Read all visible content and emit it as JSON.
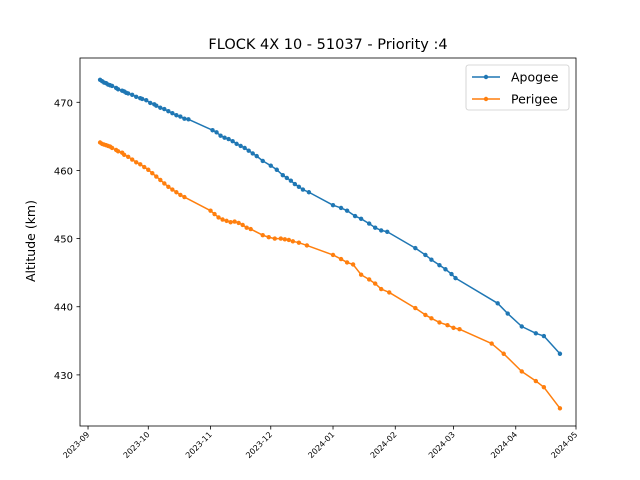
{
  "chart_data": {
    "type": "line",
    "title": "FLOCK 4X 10 - 51037 - Priority :4",
    "xlabel": "",
    "ylabel": "Altitude (km)",
    "x_ticks": [
      "2023-09",
      "2023-10",
      "2023-11",
      "2023-12",
      "2024-01",
      "2024-02",
      "2024-03",
      "2024-04",
      "2024-05"
    ],
    "y_ticks": [
      430,
      440,
      450,
      460,
      470
    ],
    "xlim": [
      "2023-08-28",
      "2024-05-01"
    ],
    "ylim": [
      422.5,
      476.5
    ],
    "grid": false,
    "legend_position": "upper right",
    "series": [
      {
        "name": "Apogee",
        "color": "#1f77b4",
        "points": [
          [
            "2023-09-07",
            473.3
          ],
          [
            "2023-09-08",
            473.1
          ],
          [
            "2023-09-09",
            472.9
          ],
          [
            "2023-09-10",
            472.8
          ],
          [
            "2023-09-11",
            472.6
          ],
          [
            "2023-09-12",
            472.5
          ],
          [
            "2023-09-13",
            472.4
          ],
          [
            "2023-09-15",
            472.1
          ],
          [
            "2023-09-16",
            471.9
          ],
          [
            "2023-09-18",
            471.7
          ],
          [
            "2023-09-19",
            471.6
          ],
          [
            "2023-09-20",
            471.4
          ],
          [
            "2023-09-21",
            471.3
          ],
          [
            "2023-09-23",
            471.1
          ],
          [
            "2023-09-25",
            470.8
          ],
          [
            "2023-09-27",
            470.6
          ],
          [
            "2023-09-28",
            470.5
          ],
          [
            "2023-09-30",
            470.3
          ],
          [
            "2023-10-02",
            469.9
          ],
          [
            "2023-10-04",
            469.7
          ],
          [
            "2023-10-05",
            469.5
          ],
          [
            "2023-10-07",
            469.2
          ],
          [
            "2023-10-09",
            469.0
          ],
          [
            "2023-10-11",
            468.7
          ],
          [
            "2023-10-13",
            468.4
          ],
          [
            "2023-10-15",
            468.1
          ],
          [
            "2023-10-17",
            467.9
          ],
          [
            "2023-10-19",
            467.6
          ],
          [
            "2023-10-21",
            467.5
          ],
          [
            "2023-11-02",
            465.9
          ],
          [
            "2023-11-04",
            465.6
          ],
          [
            "2023-11-06",
            465.1
          ],
          [
            "2023-11-08",
            464.8
          ],
          [
            "2023-11-10",
            464.6
          ],
          [
            "2023-11-12",
            464.3
          ],
          [
            "2023-11-14",
            463.9
          ],
          [
            "2023-11-16",
            463.6
          ],
          [
            "2023-11-18",
            463.3
          ],
          [
            "2023-11-20",
            462.9
          ],
          [
            "2023-11-22",
            462.5
          ],
          [
            "2023-11-24",
            462.1
          ],
          [
            "2023-11-27",
            461.4
          ],
          [
            "2023-12-01",
            460.7
          ],
          [
            "2023-12-04",
            460.1
          ],
          [
            "2023-12-07",
            459.3
          ],
          [
            "2023-12-09",
            458.9
          ],
          [
            "2023-12-11",
            458.5
          ],
          [
            "2023-12-13",
            458.0
          ],
          [
            "2023-12-15",
            457.6
          ],
          [
            "2023-12-17",
            457.2
          ],
          [
            "2023-12-20",
            456.8
          ],
          [
            "2024-01-01",
            454.9
          ],
          [
            "2024-01-05",
            454.5
          ],
          [
            "2024-01-08",
            454.1
          ],
          [
            "2024-01-12",
            453.3
          ],
          [
            "2024-01-15",
            452.9
          ],
          [
            "2024-01-19",
            452.2
          ],
          [
            "2024-01-22",
            451.6
          ],
          [
            "2024-01-25",
            451.2
          ],
          [
            "2024-01-28",
            451.0
          ],
          [
            "2024-02-11",
            448.6
          ],
          [
            "2024-02-16",
            447.6
          ],
          [
            "2024-02-19",
            446.9
          ],
          [
            "2024-02-23",
            446.1
          ],
          [
            "2024-02-26",
            445.5
          ],
          [
            "2024-02-29",
            444.8
          ],
          [
            "2024-03-02",
            444.2
          ],
          [
            "2024-03-23",
            440.5
          ],
          [
            "2024-03-28",
            439.0
          ],
          [
            "2024-04-04",
            437.1
          ],
          [
            "2024-04-11",
            436.1
          ],
          [
            "2024-04-15",
            435.7
          ],
          [
            "2024-04-23",
            433.1
          ]
        ]
      },
      {
        "name": "Perigee",
        "color": "#ff7f0e",
        "points": [
          [
            "2023-09-07",
            464.1
          ],
          [
            "2023-09-08",
            463.9
          ],
          [
            "2023-09-09",
            463.8
          ],
          [
            "2023-09-10",
            463.7
          ],
          [
            "2023-09-11",
            463.6
          ],
          [
            "2023-09-12",
            463.5
          ],
          [
            "2023-09-13",
            463.3
          ],
          [
            "2023-09-15",
            463.0
          ],
          [
            "2023-09-16",
            462.8
          ],
          [
            "2023-09-18",
            462.6
          ],
          [
            "2023-09-19",
            462.3
          ],
          [
            "2023-09-21",
            462.0
          ],
          [
            "2023-09-23",
            461.6
          ],
          [
            "2023-09-25",
            461.2
          ],
          [
            "2023-09-27",
            460.9
          ],
          [
            "2023-09-29",
            460.5
          ],
          [
            "2023-10-01",
            460.1
          ],
          [
            "2023-10-03",
            459.6
          ],
          [
            "2023-10-05",
            459.1
          ],
          [
            "2023-10-07",
            458.6
          ],
          [
            "2023-10-09",
            458.1
          ],
          [
            "2023-10-11",
            457.6
          ],
          [
            "2023-10-13",
            457.2
          ],
          [
            "2023-10-15",
            456.8
          ],
          [
            "2023-10-17",
            456.4
          ],
          [
            "2023-10-19",
            456.1
          ],
          [
            "2023-11-01",
            454.1
          ],
          [
            "2023-11-03",
            453.6
          ],
          [
            "2023-11-05",
            453.1
          ],
          [
            "2023-11-07",
            452.8
          ],
          [
            "2023-11-09",
            452.6
          ],
          [
            "2023-11-11",
            452.4
          ],
          [
            "2023-11-13",
            452.5
          ],
          [
            "2023-11-15",
            452.3
          ],
          [
            "2023-11-17",
            452.0
          ],
          [
            "2023-11-19",
            451.6
          ],
          [
            "2023-11-21",
            451.4
          ],
          [
            "2023-11-27",
            450.5
          ],
          [
            "2023-11-30",
            450.2
          ],
          [
            "2023-12-03",
            450.0
          ],
          [
            "2023-12-06",
            450.0
          ],
          [
            "2023-12-08",
            449.9
          ],
          [
            "2023-12-10",
            449.8
          ],
          [
            "2023-12-12",
            449.6
          ],
          [
            "2023-12-15",
            449.4
          ],
          [
            "2023-12-19",
            449.0
          ],
          [
            "2024-01-01",
            447.6
          ],
          [
            "2024-01-05",
            447.0
          ],
          [
            "2024-01-08",
            446.5
          ],
          [
            "2024-01-11",
            446.2
          ],
          [
            "2024-01-15",
            444.7
          ],
          [
            "2024-01-19",
            444.0
          ],
          [
            "2024-01-22",
            443.4
          ],
          [
            "2024-01-25",
            442.6
          ],
          [
            "2024-01-29",
            442.1
          ],
          [
            "2024-02-11",
            439.8
          ],
          [
            "2024-02-16",
            438.8
          ],
          [
            "2024-02-19",
            438.3
          ],
          [
            "2024-02-23",
            437.7
          ],
          [
            "2024-02-27",
            437.3
          ],
          [
            "2024-03-01",
            436.9
          ],
          [
            "2024-03-04",
            436.7
          ],
          [
            "2024-03-20",
            434.6
          ],
          [
            "2024-03-26",
            433.1
          ],
          [
            "2024-04-04",
            430.5
          ],
          [
            "2024-04-11",
            429.1
          ],
          [
            "2024-04-15",
            428.2
          ],
          [
            "2024-04-23",
            425.1
          ]
        ]
      }
    ]
  }
}
